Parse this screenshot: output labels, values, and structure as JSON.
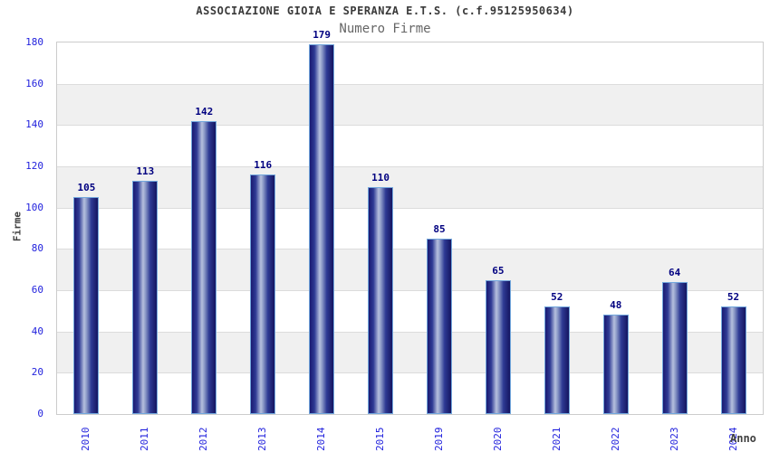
{
  "chart_data": {
    "type": "bar",
    "title": "ASSOCIAZIONE GIOIA E SPERANZA E.T.S. (c.f.95125950634)",
    "subtitle": "Numero Firme",
    "xlabel": "Anno",
    "ylabel": "Firme",
    "categories": [
      "2010",
      "2011",
      "2012",
      "2013",
      "2014",
      "2015",
      "2019",
      "2020",
      "2021",
      "2022",
      "2023",
      "2024"
    ],
    "values": [
      105,
      113,
      142,
      116,
      179,
      110,
      85,
      65,
      52,
      48,
      64,
      52
    ],
    "ylim": [
      0,
      180
    ],
    "ytick_step": 20,
    "yticks": [
      0,
      20,
      40,
      60,
      80,
      100,
      120,
      140,
      160,
      180
    ],
    "legend": "none",
    "grid": "horizontal alternating bands every 20 units",
    "colors": {
      "bar_dark": "#1a1a72",
      "bar_light": "#b6c0de",
      "bar_border": "#72a7dd",
      "value_label": "#000080",
      "tick_label": "#2222dd",
      "axis_title": "#404040",
      "title": "#3a3a3a",
      "subtitle": "#666666",
      "band_gray": "#f0f0f0",
      "band_white": "#ffffff",
      "plot_border": "#cccccc",
      "gridline": "#dcdcdc"
    }
  }
}
